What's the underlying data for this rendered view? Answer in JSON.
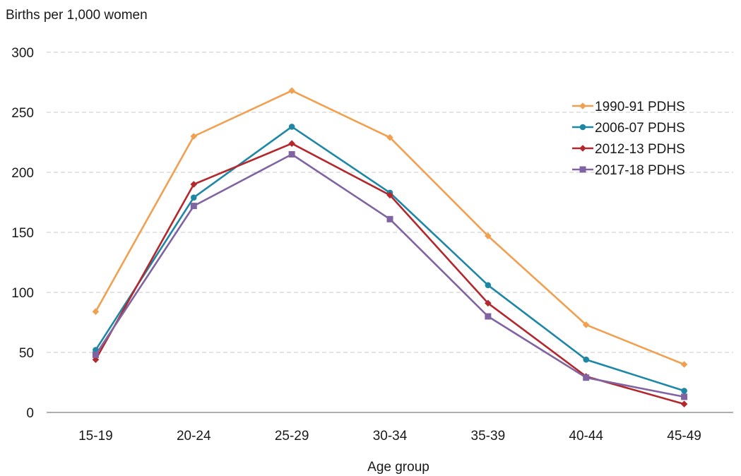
{
  "chart_data": {
    "type": "line",
    "title": "",
    "ylabel": "Births per 1,000 women",
    "xlabel": "Age group",
    "categories": [
      "15-19",
      "20-24",
      "25-29",
      "30-34",
      "35-39",
      "40-44",
      "45-49"
    ],
    "ylim": [
      0,
      300
    ],
    "yticks": [
      0,
      50,
      100,
      150,
      200,
      250,
      300
    ],
    "grid": true,
    "legend_position": "right",
    "series": [
      {
        "name": "1990-91 PDHS",
        "color": "#f0a050",
        "marker": "diamond",
        "values": [
          84,
          230,
          268,
          229,
          147,
          73,
          40
        ]
      },
      {
        "name": "2006-07 PDHS",
        "color": "#1f87a6",
        "marker": "circle",
        "values": [
          52,
          179,
          238,
          183,
          106,
          44,
          18
        ]
      },
      {
        "name": "2012-13 PDHS",
        "color": "#b3282d",
        "marker": "diamond",
        "values": [
          44,
          190,
          224,
          181,
          91,
          30,
          7
        ]
      },
      {
        "name": "2017-18 PDHS",
        "color": "#8064a2",
        "marker": "square",
        "values": [
          48,
          172,
          215,
          161,
          80,
          29,
          13
        ]
      }
    ]
  }
}
